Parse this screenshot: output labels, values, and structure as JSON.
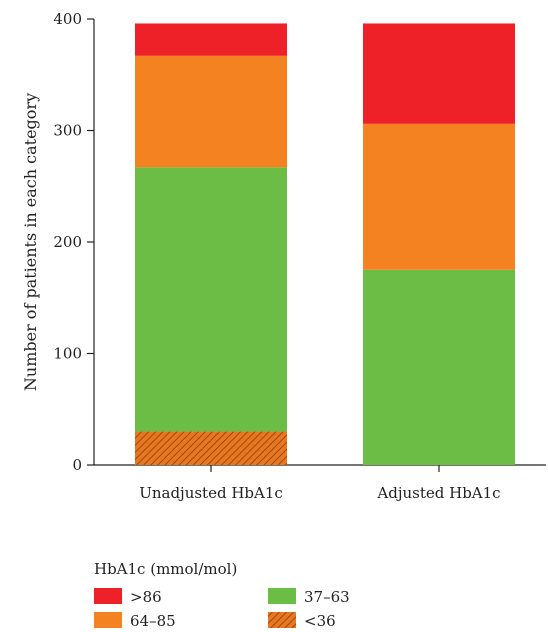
{
  "chart_data": {
    "type": "bar",
    "stacked": true,
    "title": "",
    "xlabel": "",
    "ylabel": "Number of patients in each category",
    "ylim": [
      0,
      400
    ],
    "yticks": [
      0,
      100,
      200,
      300,
      400
    ],
    "categories": [
      "Unadjusted HbA1c",
      "Adjusted HbA1c"
    ],
    "series": [
      {
        "name": "<36",
        "values": [
          30,
          0
        ],
        "color": "#E87722",
        "pattern": "hatch"
      },
      {
        "name": "37–63",
        "values": [
          237,
          175
        ],
        "color": "#6CBD45",
        "pattern": "solid"
      },
      {
        "name": "64–85",
        "values": [
          100,
          131
        ],
        "color": "#F58220",
        "pattern": "solid"
      },
      {
        "name": ">86",
        "values": [
          29,
          90
        ],
        "color": "#EE2128",
        "pattern": "solid"
      }
    ],
    "legend": {
      "title": "HbA1c (mmol/mol)",
      "placement": "bottom-left",
      "order": [
        ">86",
        "64–85",
        "37–63",
        "<36"
      ]
    },
    "grid": false
  }
}
